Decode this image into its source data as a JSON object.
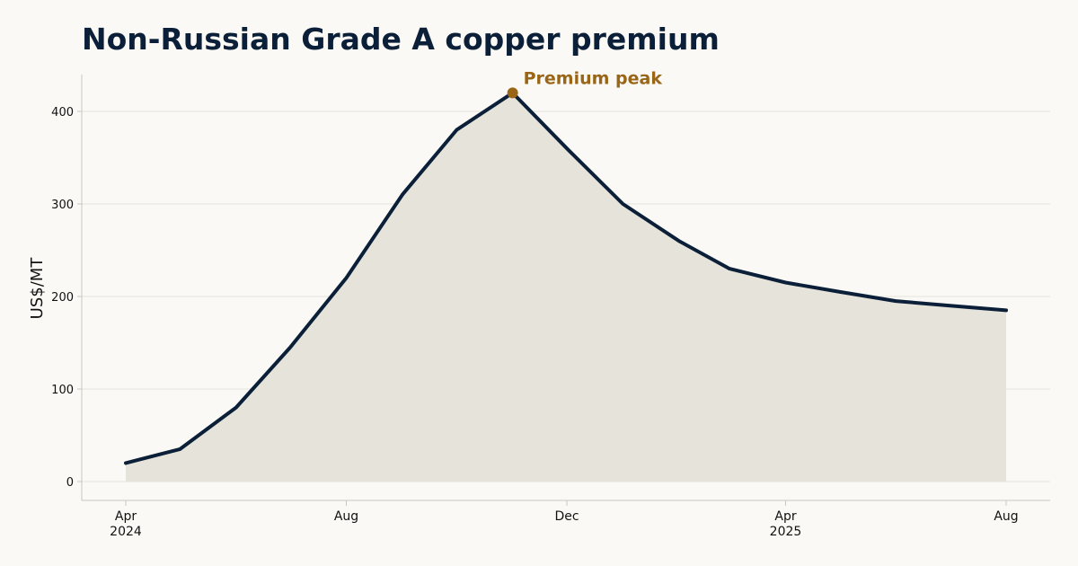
{
  "title": "Non-Russian Grade A copper premium",
  "chart_data": {
    "type": "area",
    "title": "Non-Russian Grade A copper premium",
    "xlabel": "",
    "ylabel": "US$/MT",
    "x": [
      "2024-04-01",
      "2024-05-01",
      "2024-06-01",
      "2024-07-01",
      "2024-08-01",
      "2024-09-01",
      "2024-10-01",
      "2024-11-01",
      "2024-12-01",
      "2025-01-01",
      "2025-02-01",
      "2025-03-01",
      "2025-04-01",
      "2025-05-01",
      "2025-06-01",
      "2025-07-01",
      "2025-08-01"
    ],
    "series": [
      {
        "values": [
          20,
          35,
          80,
          145,
          220,
          310,
          380,
          420,
          360,
          300,
          260,
          230,
          215,
          205,
          195,
          190,
          185
        ]
      }
    ],
    "ylim": [
      0,
      440
    ],
    "yticks": [
      0,
      100,
      200,
      300,
      400
    ],
    "xticks": [
      {
        "x": "2024-04-01",
        "label": "Apr",
        "sub": "2024"
      },
      {
        "x": "2024-08-01",
        "label": "Aug",
        "sub": ""
      },
      {
        "x": "2024-12-01",
        "label": "Dec",
        "sub": ""
      },
      {
        "x": "2025-04-01",
        "label": "Apr",
        "sub": "2025"
      },
      {
        "x": "2025-08-01",
        "label": "Aug",
        "sub": ""
      }
    ],
    "annotation": {
      "x": "2024-11-01",
      "y": 420,
      "text": "Premium peak"
    },
    "grid": true,
    "colors": {
      "line": "#0b2038",
      "fill": "#e6e3da",
      "annotation": "#996517",
      "grid": "#e4e2dc",
      "axis": "#c8c6c0"
    }
  }
}
